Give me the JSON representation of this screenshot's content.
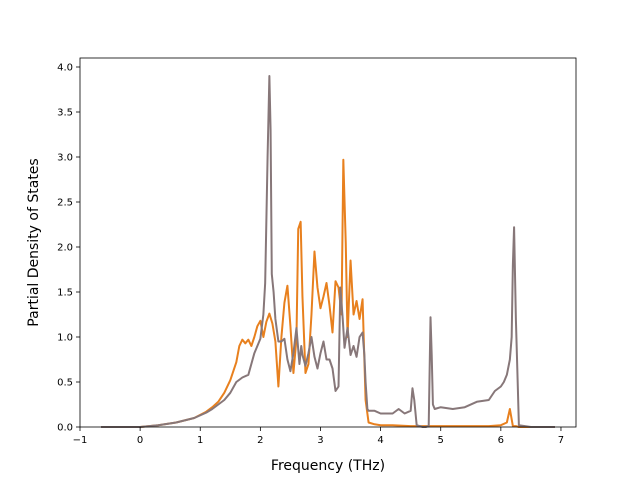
{
  "chart_data": {
    "type": "line",
    "title": "",
    "xlabel": "Frequency (THz)",
    "ylabel": "Partial Density of States",
    "xlim": [
      -1,
      7.25
    ],
    "ylim": [
      0,
      4.1
    ],
    "xticks": [
      -1,
      0,
      1,
      2,
      3,
      4,
      5,
      6,
      7
    ],
    "yticks": [
      0.0,
      0.5,
      1.0,
      1.5,
      2.0,
      2.5,
      3.0,
      3.5,
      4.0
    ],
    "xtick_labels": [
      "−1",
      "0",
      "1",
      "2",
      "3",
      "4",
      "5",
      "6",
      "7"
    ],
    "ytick_labels": [
      "0.0",
      "0.5",
      "1.0",
      "1.5",
      "2.0",
      "2.5",
      "3.0",
      "3.5",
      "4.0"
    ],
    "grid": false,
    "legend": "none",
    "series": [
      {
        "color": "#e8801e",
        "x": [
          -0.65,
          0.0,
          0.3,
          0.6,
          0.9,
          1.1,
          1.2,
          1.3,
          1.4,
          1.5,
          1.6,
          1.65,
          1.7,
          1.75,
          1.8,
          1.85,
          1.9,
          1.95,
          2.0,
          2.05,
          2.1,
          2.15,
          2.2,
          2.25,
          2.3,
          2.35,
          2.4,
          2.45,
          2.5,
          2.55,
          2.6,
          2.63,
          2.67,
          2.7,
          2.75,
          2.8,
          2.85,
          2.9,
          2.95,
          3.0,
          3.05,
          3.1,
          3.15,
          3.2,
          3.25,
          3.3,
          3.35,
          3.38,
          3.42,
          3.45,
          3.5,
          3.55,
          3.6,
          3.65,
          3.7,
          3.75,
          3.8,
          3.9,
          4.0,
          4.2,
          4.5,
          4.8,
          4.9,
          5.2,
          5.5,
          5.8,
          6.0,
          6.1,
          6.15,
          6.2,
          6.25,
          6.3,
          6.5,
          6.9
        ],
        "y": [
          0,
          0,
          0.02,
          0.05,
          0.1,
          0.17,
          0.22,
          0.28,
          0.38,
          0.52,
          0.72,
          0.9,
          0.97,
          0.93,
          0.97,
          0.9,
          1.0,
          1.12,
          1.18,
          1.0,
          1.17,
          1.26,
          1.15,
          0.95,
          0.45,
          1.0,
          1.38,
          1.57,
          1.12,
          0.6,
          0.98,
          2.2,
          2.28,
          1.45,
          0.6,
          0.7,
          1.25,
          1.95,
          1.55,
          1.32,
          1.45,
          1.6,
          1.35,
          1.05,
          1.62,
          1.55,
          1.25,
          2.97,
          2.05,
          1.0,
          1.85,
          1.25,
          1.4,
          1.2,
          1.42,
          0.3,
          0.05,
          0.03,
          0.02,
          0.02,
          0.01,
          0.01,
          0.01,
          0.01,
          0.01,
          0.01,
          0.02,
          0.05,
          0.2,
          0.01,
          0.01,
          0.0,
          0.0,
          0.0
        ]
      },
      {
        "color": "#877779",
        "x": [
          -0.65,
          0.0,
          0.3,
          0.6,
          0.9,
          1.1,
          1.2,
          1.3,
          1.4,
          1.5,
          1.6,
          1.7,
          1.8,
          1.85,
          1.9,
          1.95,
          2.0,
          2.05,
          2.08,
          2.12,
          2.15,
          2.17,
          2.19,
          2.22,
          2.25,
          2.3,
          2.35,
          2.4,
          2.45,
          2.5,
          2.55,
          2.6,
          2.65,
          2.68,
          2.7,
          2.75,
          2.8,
          2.85,
          2.9,
          2.95,
          3.0,
          3.05,
          3.1,
          3.15,
          3.2,
          3.25,
          3.3,
          3.33,
          3.37,
          3.4,
          3.45,
          3.5,
          3.55,
          3.6,
          3.65,
          3.7,
          3.73,
          3.75,
          3.78,
          3.8,
          3.9,
          4.0,
          4.1,
          4.2,
          4.3,
          4.4,
          4.5,
          4.53,
          4.56,
          4.6,
          4.65,
          4.7,
          4.75,
          4.8,
          4.83,
          4.85,
          4.87,
          4.9,
          5.0,
          5.2,
          5.4,
          5.6,
          5.8,
          5.9,
          6.0,
          6.05,
          6.1,
          6.15,
          6.18,
          6.2,
          6.22,
          6.25,
          6.28,
          6.3,
          6.5,
          6.9
        ],
        "y": [
          0,
          0,
          0.02,
          0.05,
          0.1,
          0.16,
          0.2,
          0.25,
          0.3,
          0.38,
          0.5,
          0.55,
          0.58,
          0.7,
          0.82,
          0.9,
          0.98,
          1.25,
          1.6,
          3.0,
          3.9,
          3.3,
          1.7,
          1.5,
          1.2,
          0.95,
          0.95,
          0.98,
          0.75,
          0.62,
          0.82,
          1.1,
          0.7,
          0.9,
          0.8,
          0.68,
          0.82,
          1.0,
          0.78,
          0.65,
          0.82,
          0.95,
          0.75,
          0.75,
          0.65,
          0.4,
          0.45,
          1.55,
          1.2,
          0.88,
          1.1,
          0.8,
          0.9,
          0.78,
          1.0,
          1.05,
          0.8,
          0.5,
          0.2,
          0.18,
          0.18,
          0.15,
          0.15,
          0.15,
          0.2,
          0.15,
          0.18,
          0.43,
          0.3,
          0.02,
          0.01,
          0.0,
          0.0,
          0.01,
          1.22,
          0.8,
          0.25,
          0.2,
          0.22,
          0.2,
          0.22,
          0.28,
          0.3,
          0.4,
          0.45,
          0.5,
          0.58,
          0.75,
          1.0,
          1.8,
          2.22,
          1.2,
          0.5,
          0.02,
          0.0,
          0.0
        ]
      }
    ]
  }
}
